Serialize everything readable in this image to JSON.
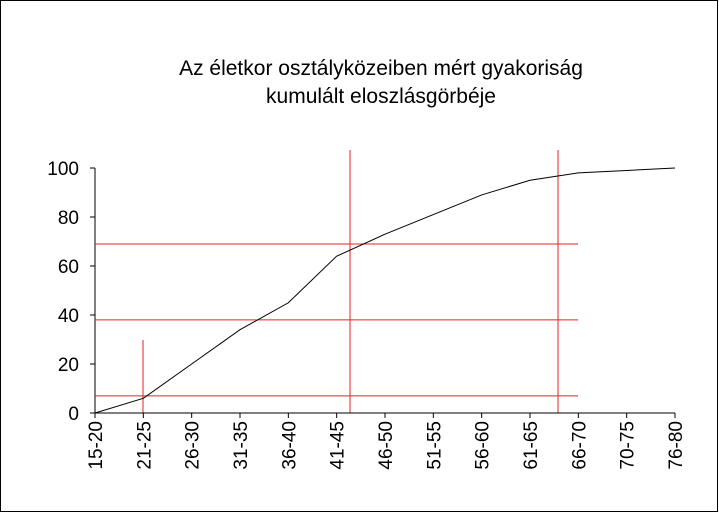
{
  "chart_data": {
    "type": "line",
    "title": [
      "Az életkor osztályközeiben mért gyakoriság",
      "kumulált eloszlásgörbéje"
    ],
    "categories": [
      "15-20",
      "21-25",
      "26-30",
      "31-35",
      "36-40",
      "41-45",
      "46-50",
      "51-55",
      "56-60",
      "61-65",
      "66-70",
      "70-75",
      "76-80"
    ],
    "values": [
      0,
      6,
      20,
      34,
      45,
      64,
      73,
      81,
      89,
      95,
      98,
      99,
      100
    ],
    "color": "#000000",
    "ylim": [
      0,
      100
    ],
    "yticks": [
      0,
      20,
      40,
      60,
      80,
      100
    ],
    "hlines": [
      7,
      38,
      69
    ],
    "hline_color": "#e8202a"
  }
}
